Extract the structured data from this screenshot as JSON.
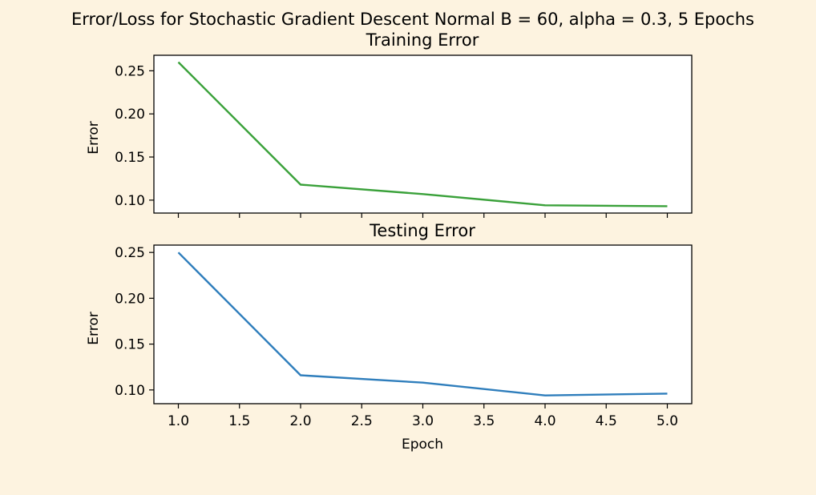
{
  "figure": {
    "suptitle": "Error/Loss for Stochastic Gradient Descent Normal B = 60, alpha = 0.3, 5 Epochs",
    "background": "#fdf3e0"
  },
  "chart_data": [
    {
      "type": "line",
      "title": "Training Error",
      "xlabel": "",
      "ylabel": "Error",
      "x": [
        1.0,
        2.0,
        3.0,
        4.0,
        5.0
      ],
      "series": [
        {
          "values": [
            0.26,
            0.118,
            0.107,
            0.094,
            0.093
          ],
          "color": "#3aa13a"
        }
      ],
      "xlim": [
        0.8,
        5.2
      ],
      "ylim": [
        0.085,
        0.268
      ],
      "yticks": [
        "0.10",
        "0.15",
        "0.20",
        "0.25"
      ],
      "xticks_labeled": false,
      "grid": false
    },
    {
      "type": "line",
      "title": "Testing Error",
      "xlabel": "Epoch",
      "ylabel": "Error",
      "x": [
        1.0,
        2.0,
        3.0,
        4.0,
        5.0
      ],
      "series": [
        {
          "values": [
            0.25,
            0.116,
            0.108,
            0.094,
            0.096
          ],
          "color": "#2f7ebc"
        }
      ],
      "xlim": [
        0.8,
        5.2
      ],
      "ylim": [
        0.085,
        0.258
      ],
      "xticks": [
        "1.0",
        "1.5",
        "2.0",
        "2.5",
        "3.0",
        "3.5",
        "4.0",
        "4.5",
        "5.0"
      ],
      "yticks": [
        "0.10",
        "0.15",
        "0.20",
        "0.25"
      ],
      "xticks_labeled": true,
      "grid": false
    }
  ]
}
